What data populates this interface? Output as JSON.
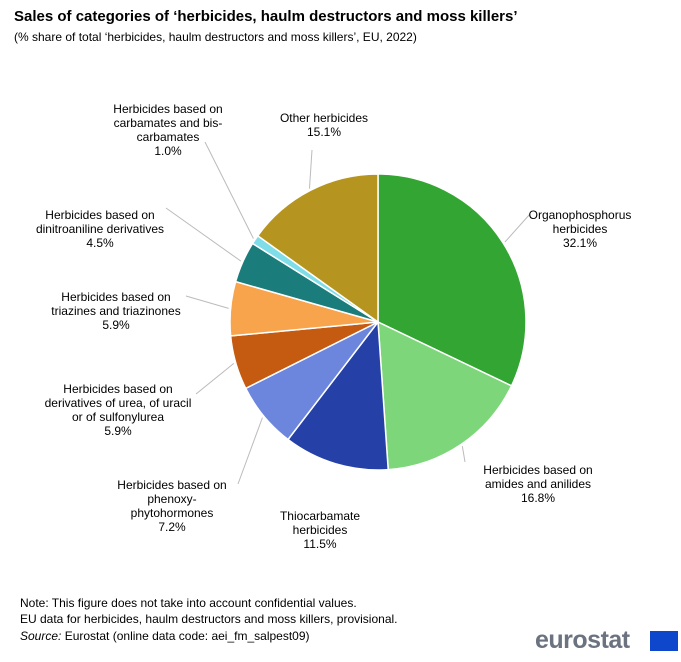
{
  "chart_data": {
    "type": "pie",
    "title": "Sales of categories of ‘herbicides, haulm destructors and moss killers’",
    "subtitle": "(% share of total ‘herbicides, haulm destructors and moss killers’, EU, 2022)",
    "categories": [
      "Organophosphorus herbicides",
      "Herbicides based on amides and anilides",
      "Thiocarbamate herbicides",
      "Herbicides based on phenoxy-phytohormones",
      "Herbicides based on derivatives of urea, of uracil or of sulfonylurea",
      "Herbicides based on triazines and triazinones",
      "Herbicides based on dinitroaniline derivatives",
      "Herbicides based on carbamates and bis-carbamates",
      "Other herbicides"
    ],
    "values": [
      32.1,
      16.8,
      11.5,
      7.2,
      5.9,
      5.9,
      4.5,
      1.0,
      15.1
    ],
    "value_labels": [
      "32.1%",
      "16.8%",
      "11.5%",
      "7.2%",
      "5.9%",
      "5.9%",
      "4.5%",
      "1.0%",
      "15.1%"
    ],
    "colors": [
      "#33a532",
      "#7dd67a",
      "#2541a8",
      "#6c86dd",
      "#c55a11",
      "#f8a44c",
      "#1b7c7c",
      "#7fdde8",
      "#b5941f"
    ],
    "notes": [
      "Note: This figure does not take into account confidential values.",
      "EU data for herbicides, haulm destructors and moss killers, provisional."
    ],
    "source_label": "Source:",
    "source": "Eurostat (online data code: aei_fm_salpest09)",
    "logo": "eurostat"
  }
}
